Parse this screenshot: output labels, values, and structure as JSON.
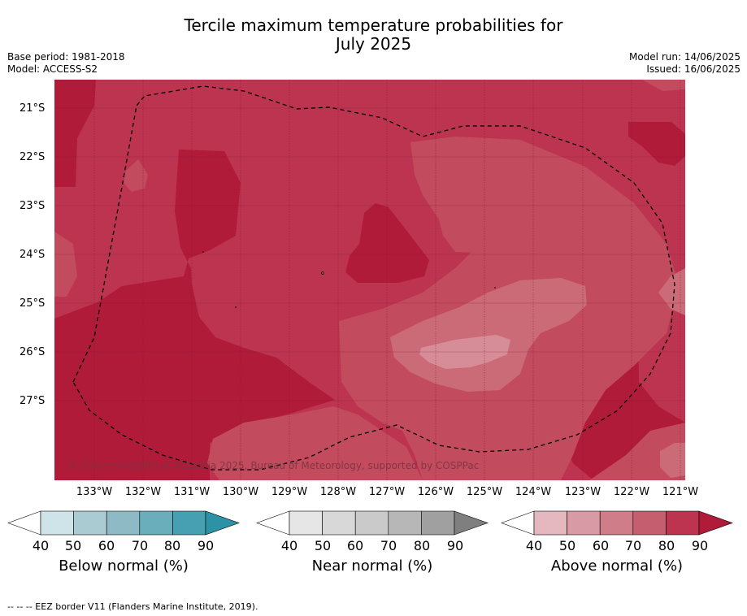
{
  "title_line1": "Tercile maximum temperature probabilities for",
  "title_line2": "July 2025",
  "base_period": "Base period: 1981-2018",
  "model": "Model: ACCESS-S2",
  "model_run": "Model run: 14/06/2025",
  "issued": "Issued: 16/06/2025",
  "copyright": "© Commonwealth of Australia 2025, Bureau of Meteorology, supported by COSPPac",
  "latitude_labels": [
    "21°S",
    "22°S",
    "23°S",
    "24°S",
    "25°S",
    "26°S",
    "27°S"
  ],
  "longitude_labels": [
    "133°W",
    "132°W",
    "131°W",
    "130°W",
    "129°W",
    "128°W",
    "127°W",
    "126°W",
    "125°W",
    "124°W",
    "123°W",
    "122°W",
    "121°W"
  ],
  "colorbars": [
    {
      "label": "Below normal (%)",
      "ticks": [
        "40",
        "50",
        "60",
        "70",
        "80",
        "90"
      ],
      "colors": [
        "#ffffff",
        "#cfe4e9",
        "#abcbd2",
        "#8dbac5",
        "#6aaebb",
        "#46a0b1",
        "#2c93a6"
      ]
    },
    {
      "label": "Near normal (%)",
      "ticks": [
        "40",
        "50",
        "60",
        "70",
        "80",
        "90"
      ],
      "colors": [
        "#ffffff",
        "#e6e6e6",
        "#d8d8d8",
        "#cacaca",
        "#b7b7b7",
        "#a0a0a0",
        "#7f7f7f"
      ]
    },
    {
      "label": "Above normal (%)",
      "ticks": [
        "40",
        "50",
        "60",
        "70",
        "80",
        "90"
      ],
      "colors": [
        "#ffffff",
        "#e5b8bf",
        "#d89aa4",
        "#cf7d89",
        "#c55f6f",
        "#bc3450",
        "#b11b3a"
      ]
    }
  ],
  "footer": "--  --  -- EEZ border V11 (Flanders Marine Institute, 2019).",
  "legend_colors": {
    "above_90": "#b11b3a",
    "above_80": "#bc3450",
    "above_70": "#c34b5e",
    "above_60": "#cc6b78",
    "above_50": "#d78d98"
  }
}
